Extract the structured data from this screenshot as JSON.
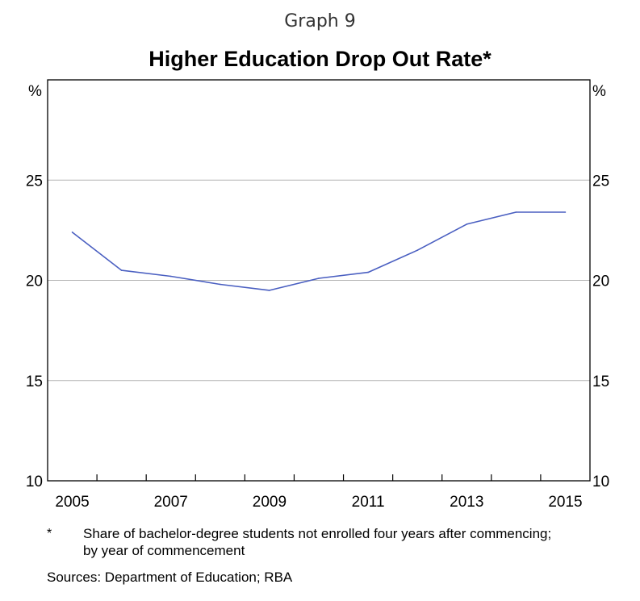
{
  "graph_label": "Graph 9",
  "chart_data": {
    "type": "line",
    "title": "Higher Education Drop Out Rate*",
    "y_unit_left": "%",
    "y_unit_right": "%",
    "ylim": [
      10,
      30
    ],
    "y_ticks": [
      10,
      15,
      20,
      25
    ],
    "x_tick_labels": [
      "2005",
      "2007",
      "2009",
      "2011",
      "2013",
      "2015"
    ],
    "xlim": [
      2004.5,
      2015.5
    ],
    "grid": true,
    "series": [
      {
        "x": [
          2005,
          2006,
          2007,
          2008,
          2009,
          2010,
          2011,
          2012,
          2013,
          2014,
          2015
        ],
        "values": [
          22.4,
          20.5,
          20.2,
          19.8,
          19.5,
          20.1,
          20.4,
          21.5,
          22.8,
          23.4,
          23.4
        ],
        "color": "#4a5fc1"
      }
    ]
  },
  "footnote": {
    "marker": "*",
    "text": "Share of bachelor-degree students not enrolled four years after commencing; by year of commencement"
  },
  "sources": "Sources:   Department of Education; RBA"
}
